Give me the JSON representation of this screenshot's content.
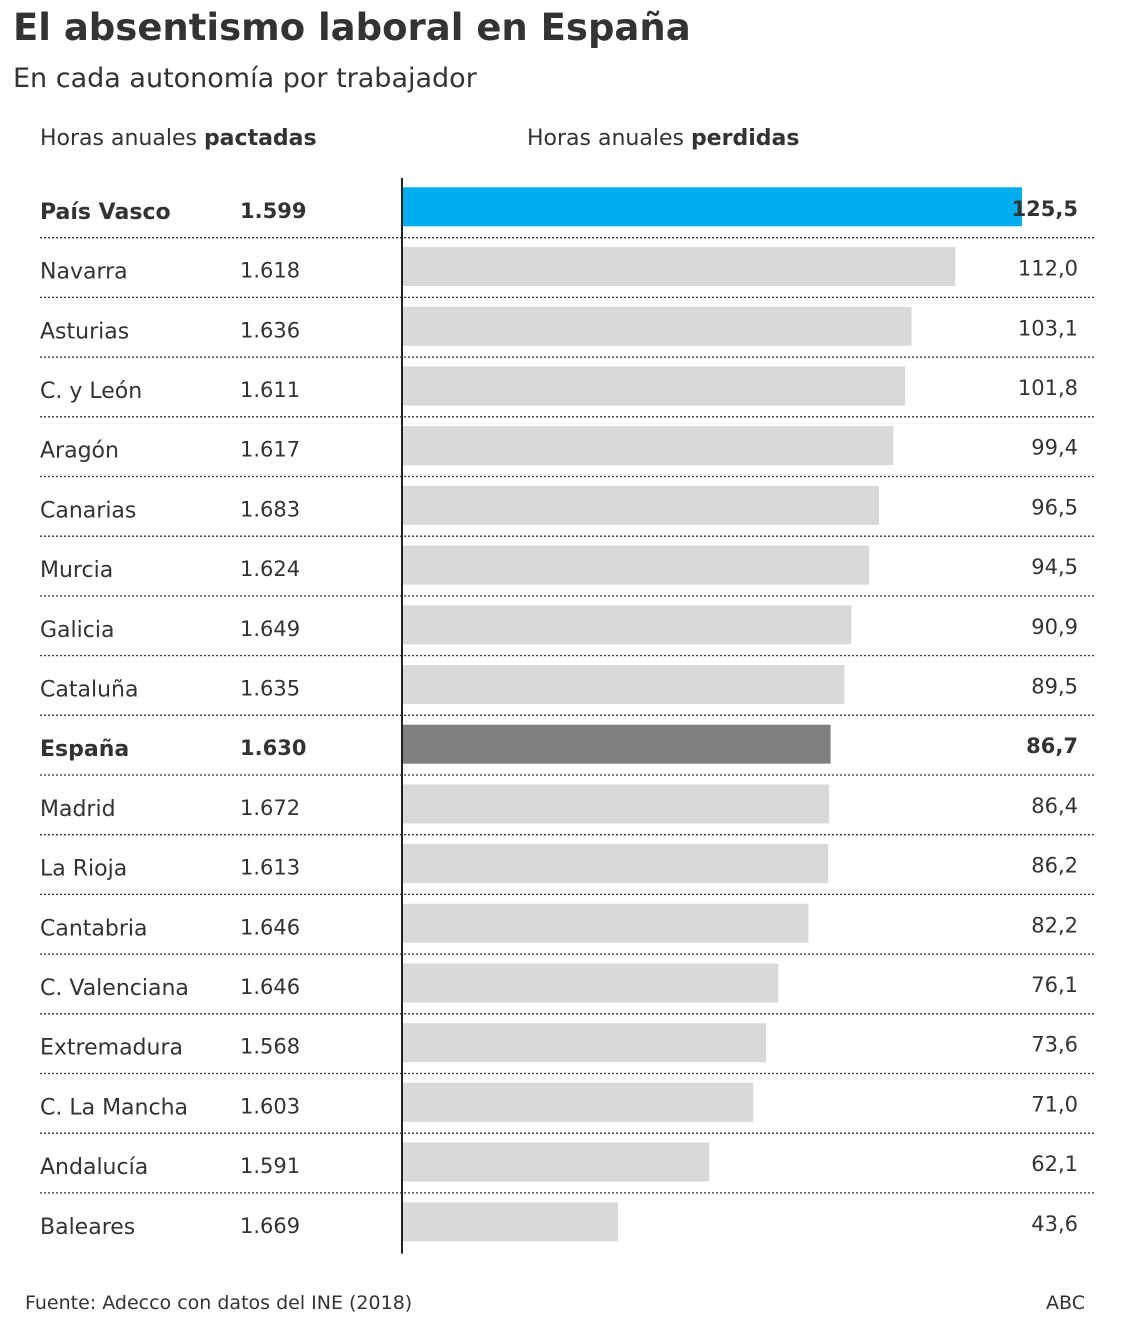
{
  "title": "El absentismo laboral en España",
  "subtitle": "En cada autonomía por trabajador",
  "headers": {
    "left_prefix": "Horas anuales ",
    "left_bold": "pactadas",
    "right_prefix": "Horas anuales ",
    "right_bold": "perdidas"
  },
  "chart_data": {
    "type": "bar",
    "orientation": "horizontal",
    "xlim": [
      0,
      125.5
    ],
    "categories": [
      "País Vasco",
      "Navarra",
      "Asturias",
      "C. y León",
      "Aragón",
      "Canarias",
      "Murcia",
      "Galicia",
      "Cataluña",
      "España",
      "Madrid",
      "La Rioja",
      "Cantabria",
      "C. Valenciana",
      "Extremadura",
      "C. La Mancha",
      "Andalucía",
      "Baleares"
    ],
    "agreed_hours_labels": [
      "1.599",
      "1.618",
      "1.636",
      "1.611",
      "1.617",
      "1.683",
      "1.624",
      "1.649",
      "1.635",
      "1.630",
      "1.672",
      "1.613",
      "1.646",
      "1.646",
      "1.568",
      "1.603",
      "1.591",
      "1.669"
    ],
    "values": [
      125.5,
      112.0,
      103.1,
      101.8,
      99.4,
      96.5,
      94.5,
      90.9,
      89.5,
      86.7,
      86.4,
      86.2,
      82.2,
      76.1,
      73.6,
      71.0,
      62.1,
      43.6
    ],
    "value_labels": [
      "125,5",
      "112,0",
      "103,1",
      "101,8",
      "99,4",
      "96,5",
      "94,5",
      "90,9",
      "89,5",
      "86,7",
      "86,4",
      "86,2",
      "82,2",
      "76,1",
      "73,6",
      "71,0",
      "62,1",
      "43,6"
    ],
    "highlight": {
      "País Vasco": "top",
      "España": "average"
    },
    "colors": {
      "top": "#00aeef",
      "average": "#808080",
      "default": "#d9d9d9",
      "text": "#333333",
      "axis": "#222222"
    }
  },
  "footer": {
    "source": "Fuente: Adecco con datos del INE (2018)",
    "brand": "ABC"
  }
}
